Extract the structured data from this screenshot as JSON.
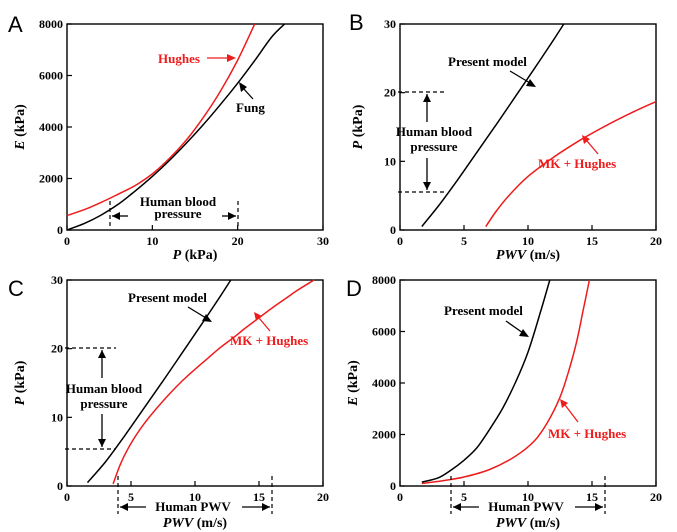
{
  "chart_data": [
    {
      "panel_label": "A",
      "type": "line",
      "xlabel_var": "P",
      "xlabel_unit": " (kPa)",
      "ylabel_var": "E",
      "ylabel_unit": " (kPa)",
      "xlim": [
        0,
        30
      ],
      "ylim": [
        0,
        8000
      ],
      "xticks": [
        0,
        10,
        20,
        30
      ],
      "yticks": [
        0,
        2000,
        4000,
        6000,
        8000
      ],
      "series": [
        {
          "name": "Hughes",
          "color": "#ee1c1c",
          "x": [
            0,
            2,
            4,
            6,
            8,
            10,
            12,
            14,
            16,
            18,
            20,
            22
          ],
          "y": [
            560,
            790,
            1070,
            1390,
            1730,
            2180,
            2780,
            3500,
            4380,
            5400,
            6600,
            8000
          ]
        },
        {
          "name": "Fung",
          "color": "#000000",
          "x": [
            0,
            2,
            4,
            6,
            8,
            10,
            12,
            14,
            16,
            18,
            20,
            22,
            24,
            25.5
          ],
          "y": [
            0,
            250,
            580,
            1000,
            1520,
            2080,
            2700,
            3380,
            4100,
            4880,
            5700,
            6580,
            7500,
            8000
          ]
        }
      ],
      "annotations": [
        {
          "text": "Hughes",
          "color": "#ee1c1c"
        },
        {
          "text": "Fung",
          "color": "#000000"
        }
      ],
      "range_annotation": {
        "lines": [
          "Human blood",
          "pressure"
        ],
        "from": 5,
        "to": 20,
        "axis": "x"
      }
    },
    {
      "panel_label": "B",
      "type": "line",
      "xlabel_var": "PWV",
      "xlabel_unit": " (m/s)",
      "ylabel_var": "P",
      "ylabel_unit": " (kPa)",
      "xlim": [
        0,
        20
      ],
      "ylim": [
        0,
        30
      ],
      "xticks": [
        0,
        5,
        10,
        15,
        20
      ],
      "yticks": [
        0,
        10,
        20,
        30
      ],
      "series": [
        {
          "name": "Present model",
          "color": "#000000",
          "x": [
            1.7,
            3,
            4.5,
            6,
            7.5,
            9,
            10.5,
            12,
            12.8
          ],
          "y": [
            0.5,
            3.5,
            7.3,
            11.3,
            15.3,
            19.4,
            23.5,
            27.7,
            30
          ]
        },
        {
          "name": "MK + Hughes",
          "color": "#ee1c1c",
          "x": [
            6.7,
            7.5,
            8.5,
            10,
            12,
            14,
            16,
            18,
            20
          ],
          "y": [
            0.5,
            2.7,
            5.0,
            7.8,
            10.6,
            13.0,
            15.1,
            17.0,
            18.7
          ]
        }
      ],
      "annotations": [
        {
          "text": "Present model",
          "color": "#000000"
        },
        {
          "text": "MK + Hughes",
          "color": "#ee1c1c"
        }
      ],
      "range_annotation": {
        "lines": [
          "Human blood",
          "pressure"
        ],
        "from": 5,
        "to": 20,
        "axis": "y"
      }
    },
    {
      "panel_label": "C",
      "type": "line",
      "xlabel_var": "PWV",
      "xlabel_unit": " (m/s)",
      "ylabel_var": "P",
      "ylabel_unit": " (kPa)",
      "xlim": [
        0,
        20
      ],
      "ylim": [
        0,
        30
      ],
      "xticks": [
        0,
        5,
        10,
        15,
        20
      ],
      "yticks": [
        0,
        10,
        20,
        30
      ],
      "series": [
        {
          "name": "Present model",
          "color": "#000000",
          "x": [
            1.6,
            3,
            4.5,
            6,
            7.5,
            9,
            10.5,
            12,
            12.8
          ],
          "y": [
            0.5,
            3.5,
            7.3,
            11.3,
            15.3,
            19.4,
            23.5,
            27.7,
            30
          ]
        },
        {
          "name": "MK + Hughes",
          "color": "#ee1c1c",
          "x": [
            3.6,
            4.2,
            5,
            6,
            7,
            8,
            9,
            10,
            11,
            12,
            13,
            14,
            15,
            16,
            17,
            18,
            19.3
          ],
          "y": [
            0.3,
            3.3,
            6.2,
            9.0,
            11.3,
            13.4,
            15.3,
            17.0,
            18.6,
            20.2,
            21.6,
            23.1,
            24.5,
            25.9,
            27.2,
            28.5,
            30
          ]
        }
      ],
      "annotations": [
        {
          "text": "Present model",
          "color": "#000000"
        },
        {
          "text": "MK + Hughes",
          "color": "#ee1c1c"
        }
      ],
      "range_annotation": {
        "lines": [
          "Human blood",
          "pressure"
        ],
        "from": 5,
        "to": 20,
        "axis": "y"
      },
      "range_annotation_x": {
        "lines": [
          "Human PWV"
        ],
        "from": 4,
        "to": 16,
        "axis": "x"
      }
    },
    {
      "panel_label": "D",
      "type": "line",
      "xlabel_var": "PWV",
      "xlabel_unit": " (m/s)",
      "ylabel_var": "E",
      "ylabel_unit": " (kPa)",
      "xlim": [
        0,
        20
      ],
      "ylim": [
        0,
        8000
      ],
      "xticks": [
        0,
        5,
        10,
        15,
        20
      ],
      "yticks": [
        0,
        2000,
        4000,
        6000,
        8000
      ],
      "series": [
        {
          "name": "Present model",
          "color": "#000000",
          "x": [
            1.7,
            3,
            4,
            5,
            6,
            7,
            8,
            9,
            10,
            11,
            11.7
          ],
          "y": [
            150,
            320,
            620,
            1000,
            1480,
            2200,
            3000,
            4000,
            5200,
            6800,
            8000
          ]
        },
        {
          "name": "MK + Hughes",
          "color": "#ee1c1c",
          "x": [
            1.7,
            3,
            5,
            7,
            9,
            10.5,
            11.5,
            12.5,
            13.2,
            13.8,
            14.3,
            14.8
          ],
          "y": [
            100,
            180,
            350,
            640,
            1150,
            1750,
            2450,
            3450,
            4500,
            5600,
            6800,
            8000
          ]
        }
      ],
      "annotations": [
        {
          "text": "Present model",
          "color": "#000000"
        },
        {
          "text": "MK + Hughes",
          "color": "#ee1c1c"
        }
      ],
      "range_annotation_x": {
        "lines": [
          "Human PWV"
        ],
        "from": 4,
        "to": 16,
        "axis": "x"
      }
    }
  ]
}
